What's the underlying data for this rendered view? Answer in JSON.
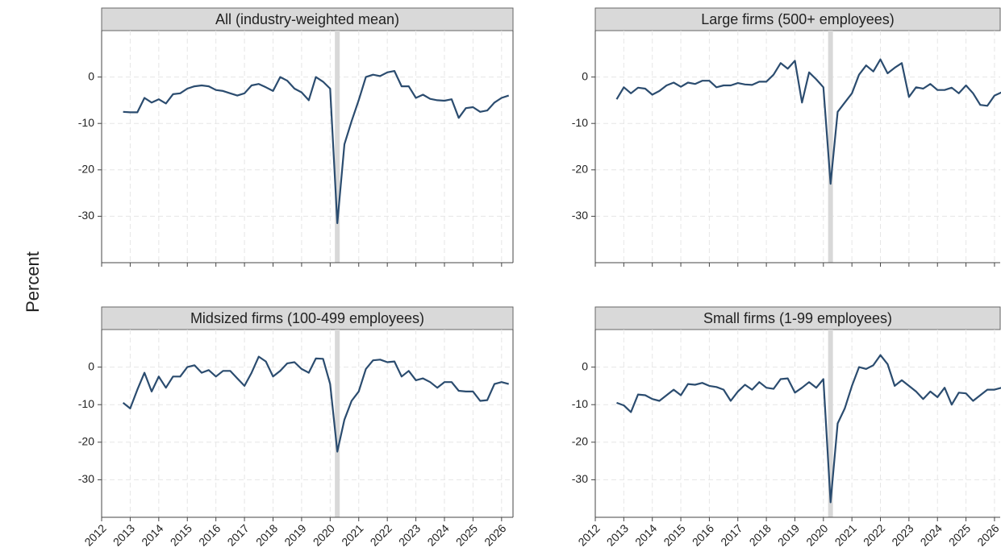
{
  "ylabel": "Percent",
  "chart_data": [
    {
      "type": "line",
      "title": "All (industry-weighted mean)",
      "color": "#2b4c6f",
      "grid": true,
      "highlight_x": 2020.25,
      "xlim": [
        2012,
        2026.4
      ],
      "ylim": [
        -40,
        10
      ],
      "xticks": [
        2012,
        2013,
        2014,
        2015,
        2016,
        2017,
        2018,
        2019,
        2020,
        2021,
        2022,
        2023,
        2024,
        2025,
        2026
      ],
      "yticks": [
        -30,
        -20,
        -10,
        0
      ],
      "x": [
        2012.75,
        2013,
        2013.25,
        2013.5,
        2013.75,
        2014,
        2014.25,
        2014.5,
        2014.75,
        2015,
        2015.25,
        2015.5,
        2015.75,
        2016,
        2016.25,
        2016.5,
        2016.75,
        2017,
        2017.25,
        2017.5,
        2017.75,
        2018,
        2018.25,
        2018.5,
        2018.75,
        2019,
        2019.25,
        2019.5,
        2019.75,
        2020,
        2020.25,
        2020.5,
        2020.75,
        2021,
        2021.25,
        2021.5,
        2021.75,
        2022,
        2022.25,
        2022.5,
        2022.75,
        2023,
        2023.25,
        2023.5,
        2023.75,
        2024,
        2024.25,
        2024.5,
        2024.75,
        2025,
        2025.25,
        2025.5,
        2025.75,
        2026,
        2026.25
      ],
      "values": [
        -7.5,
        -7.6,
        -7.6,
        -4.5,
        -5.5,
        -4.8,
        -5.7,
        -3.7,
        -3.5,
        -2.5,
        -2,
        -1.8,
        -2,
        -2.8,
        -3,
        -3.5,
        -4,
        -3.5,
        -1.8,
        -1.5,
        -2.2,
        -3,
        0,
        -0.8,
        -2.5,
        -3.3,
        -5,
        0,
        -1,
        -2.5,
        -31.5,
        -14.5,
        -9.5,
        -5,
        0,
        0.5,
        0.2,
        1,
        1.3,
        -2,
        -2,
        -4.5,
        -3.8,
        -4.7,
        -5,
        -5.1,
        -4.8,
        -8.8,
        -6.7,
        -6.5,
        -7.5,
        -7.2,
        -5.5,
        -4.5,
        -4
      ]
    },
    {
      "type": "line",
      "title": "Large firms (500+ employees)",
      "color": "#2b4c6f",
      "grid": true,
      "highlight_x": 2020.25,
      "xlim": [
        2012,
        2026.2
      ],
      "ylim": [
        -40,
        10
      ],
      "xticks": [
        2012,
        2013,
        2014,
        2015,
        2016,
        2017,
        2018,
        2019,
        2020,
        2021,
        2022,
        2023,
        2024,
        2025,
        2026
      ],
      "yticks": [
        -30,
        -20,
        -10,
        0
      ],
      "x": [
        2012.75,
        2013,
        2013.25,
        2013.5,
        2013.75,
        2014,
        2014.25,
        2014.5,
        2014.75,
        2015,
        2015.25,
        2015.5,
        2015.75,
        2016,
        2016.25,
        2016.5,
        2016.75,
        2017,
        2017.25,
        2017.5,
        2017.75,
        2018,
        2018.25,
        2018.5,
        2018.75,
        2019,
        2019.25,
        2019.5,
        2019.75,
        2020,
        2020.25,
        2020.5,
        2020.75,
        2021,
        2021.25,
        2021.5,
        2021.75,
        2022,
        2022.25,
        2022.5,
        2022.75,
        2023,
        2023.25,
        2023.5,
        2023.75,
        2024,
        2024.25,
        2024.5,
        2024.75,
        2025,
        2025.25,
        2025.5,
        2025.75,
        2026,
        2026.25
      ],
      "values": [
        -4.8,
        -2.2,
        -3.5,
        -2.3,
        -2.5,
        -3.8,
        -3,
        -1.8,
        -1.2,
        -2.1,
        -1.2,
        -1.5,
        -0.8,
        -0.8,
        -2.2,
        -1.8,
        -1.8,
        -1.3,
        -1.6,
        -1.7,
        -1,
        -1,
        0.5,
        3,
        1.8,
        3.5,
        -5.5,
        1,
        -0.5,
        -2.2,
        -23,
        -7.5,
        -5.5,
        -3.5,
        0.5,
        2.5,
        1.2,
        3.8,
        0.8,
        2,
        3,
        -4.3,
        -2.2,
        -2.5,
        -1.5,
        -2.8,
        -2.8,
        -2.3,
        -3.5,
        -1.8,
        -3.5,
        -6,
        -6.2,
        -4,
        -3.3
      ]
    },
    {
      "type": "line",
      "title": "Midsized firms (100-499 employees)",
      "color": "#2b4c6f",
      "grid": true,
      "highlight_x": 2020.25,
      "xlim": [
        2012,
        2026.4
      ],
      "ylim": [
        -40,
        10
      ],
      "xticks": [
        2012,
        2013,
        2014,
        2015,
        2016,
        2017,
        2018,
        2019,
        2020,
        2021,
        2022,
        2023,
        2024,
        2025,
        2026
      ],
      "yticks": [
        -30,
        -20,
        -10,
        0
      ],
      "x": [
        2012.75,
        2013,
        2013.25,
        2013.5,
        2013.75,
        2014,
        2014.25,
        2014.5,
        2014.75,
        2015,
        2015.25,
        2015.5,
        2015.75,
        2016,
        2016.25,
        2016.5,
        2016.75,
        2017,
        2017.25,
        2017.5,
        2017.75,
        2018,
        2018.25,
        2018.5,
        2018.75,
        2019,
        2019.25,
        2019.5,
        2019.75,
        2020,
        2020.25,
        2020.5,
        2020.75,
        2021,
        2021.25,
        2021.5,
        2021.75,
        2022,
        2022.25,
        2022.5,
        2022.75,
        2023,
        2023.25,
        2023.5,
        2023.75,
        2024,
        2024.25,
        2024.5,
        2024.75,
        2025,
        2025.25,
        2025.5,
        2025.75,
        2026,
        2026.25
      ],
      "values": [
        -9.5,
        -11,
        -6,
        -1.5,
        -6.5,
        -2.5,
        -5.5,
        -2.5,
        -2.5,
        0,
        0.5,
        -1.5,
        -0.8,
        -2.5,
        -1,
        -1,
        -3,
        -5,
        -1.5,
        2.8,
        1.5,
        -2.5,
        -1,
        1,
        1.3,
        -0.5,
        -1.5,
        2.3,
        2.2,
        -4.5,
        -22.5,
        -14,
        -9,
        -6.5,
        -0.5,
        1.8,
        2,
        1.3,
        1.5,
        -2.5,
        -1,
        -3.5,
        -3,
        -4,
        -5.5,
        -4,
        -4,
        -6.3,
        -6.5,
        -6.5,
        -9,
        -8.8,
        -4.5,
        -4,
        -4.5
      ]
    },
    {
      "type": "line",
      "title": "Small firms (1-99 employees)",
      "color": "#2b4c6f",
      "grid": true,
      "highlight_x": 2020.25,
      "xlim": [
        2012,
        2026.2
      ],
      "ylim": [
        -40,
        10
      ],
      "xticks": [
        2012,
        2013,
        2014,
        2015,
        2016,
        2017,
        2018,
        2019,
        2020,
        2021,
        2022,
        2023,
        2024,
        2025,
        2026
      ],
      "yticks": [
        -30,
        -20,
        -10,
        0
      ],
      "x": [
        2012.75,
        2013,
        2013.25,
        2013.5,
        2013.75,
        2014,
        2014.25,
        2014.5,
        2014.75,
        2015,
        2015.25,
        2015.5,
        2015.75,
        2016,
        2016.25,
        2016.5,
        2016.75,
        2017,
        2017.25,
        2017.5,
        2017.75,
        2018,
        2018.25,
        2018.5,
        2018.75,
        2019,
        2019.25,
        2019.5,
        2019.75,
        2020,
        2020.25,
        2020.5,
        2020.75,
        2021,
        2021.25,
        2021.5,
        2021.75,
        2022,
        2022.25,
        2022.5,
        2022.75,
        2023,
        2023.25,
        2023.5,
        2023.75,
        2024,
        2024.25,
        2024.5,
        2024.75,
        2025,
        2025.25,
        2025.5,
        2025.75,
        2026,
        2026.25
      ],
      "values": [
        -9.5,
        -10.2,
        -12,
        -7.3,
        -7.5,
        -8.5,
        -9,
        -7.5,
        -6,
        -7.5,
        -4.5,
        -4.7,
        -4.2,
        -5,
        -5.3,
        -6,
        -9,
        -6.5,
        -4.7,
        -6,
        -4,
        -5.5,
        -5.8,
        -3.2,
        -3,
        -6.8,
        -5.5,
        -4,
        -5.5,
        -3.2,
        -36,
        -15,
        -11,
        -5,
        0,
        -0.5,
        0.5,
        3.2,
        0.8,
        -5,
        -3.5,
        -5,
        -6.5,
        -8.5,
        -6.5,
        -8,
        -5.5,
        -10,
        -6.8,
        -7,
        -9,
        -7.5,
        -6,
        -6,
        -5.5
      ]
    }
  ]
}
